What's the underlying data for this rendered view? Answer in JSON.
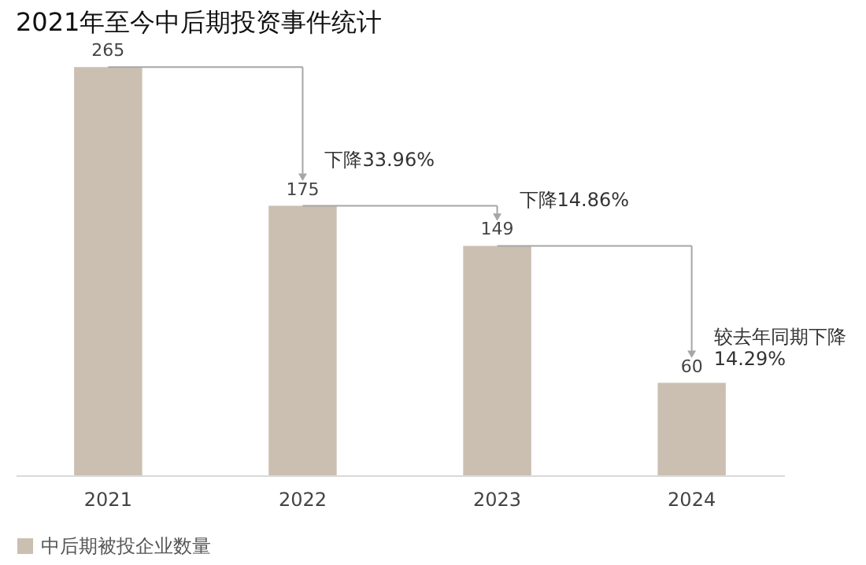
{
  "chart_data": {
    "type": "bar",
    "title": "2021年至今中后期投资事件统计",
    "categories": [
      "2021",
      "2022",
      "2023",
      "2024"
    ],
    "series": [
      {
        "name": "中后期被投企业数量",
        "color": "#cbbfb2",
        "values": [
          265,
          175,
          149,
          60
        ]
      }
    ],
    "data_labels": true,
    "tick_labels": "x",
    "grid": false,
    "legend": "bottom",
    "annotations": [
      "下降33.96%",
      "下降14.86%",
      "较去年同期下降\n14.29%"
    ]
  }
}
